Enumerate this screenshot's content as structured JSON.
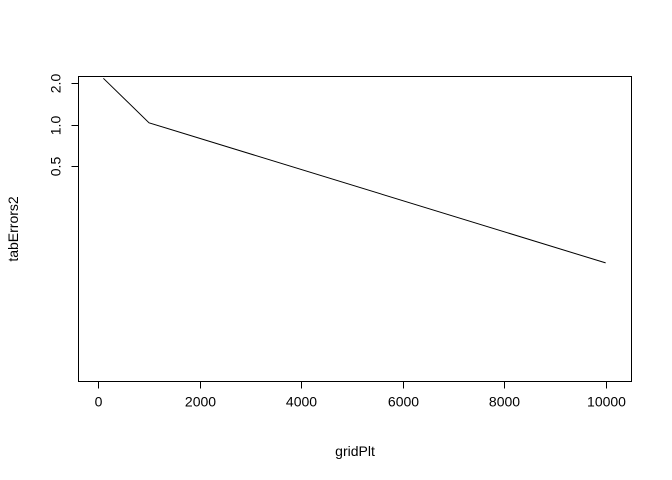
{
  "chart_data": {
    "type": "line",
    "title": "",
    "xlabel": "gridPlt",
    "ylabel": "tabErrors2",
    "x": [
      100,
      1000,
      10000
    ],
    "series": [
      {
        "values": [
          2.16,
          1.03,
          0.1
        ]
      }
    ],
    "xlim": [
      -400,
      10500
    ],
    "ylim": [
      0.014,
      2.245
    ],
    "y_scale": "log",
    "x_ticks": [
      0,
      2000,
      4000,
      6000,
      8000,
      10000
    ],
    "x_tick_labels": [
      "0",
      "2000",
      "4000",
      "6000",
      "8000",
      "10000"
    ],
    "y_ticks": [
      0.5,
      1.0,
      2.0
    ],
    "y_tick_labels": [
      "0.5",
      "1.0",
      "2.0"
    ],
    "grid": false,
    "legend": "none"
  }
}
